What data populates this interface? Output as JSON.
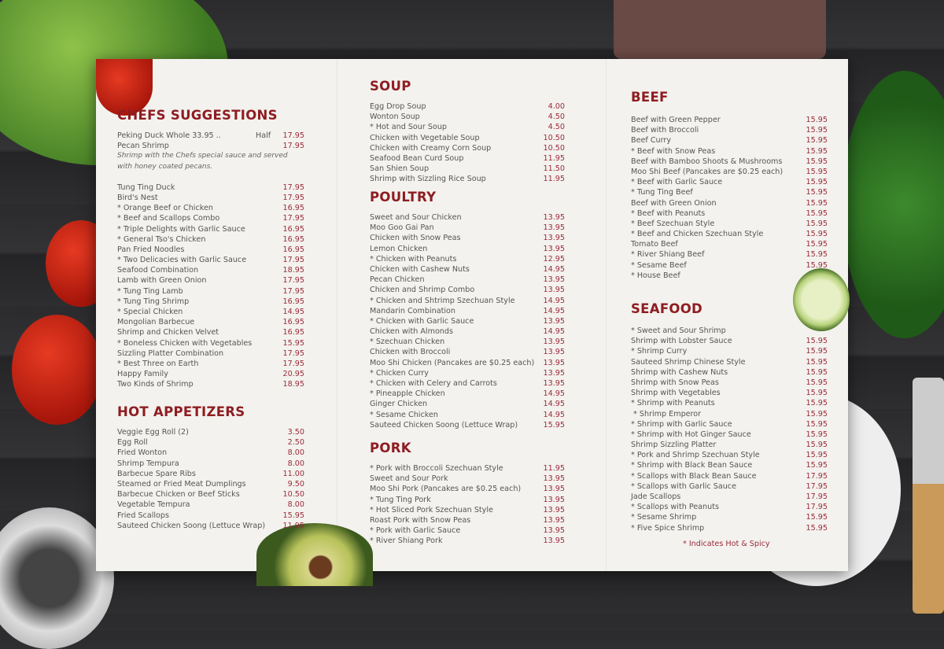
{
  "menu": {
    "chefs": {
      "title": "CHEFS SUGGESTIONS",
      "peking": {
        "name": "Peking Duck   Whole 33.95 ..",
        "half": "Half",
        "price": "17.95"
      },
      "pecan": {
        "name": "Pecan Shrimp",
        "price": "17.95"
      },
      "pecan_desc": "Shrimp with the Chefs special sauce and served with honey coated pecans.",
      "items": [
        {
          "name": "Tung Ting Duck",
          "price": "17.95"
        },
        {
          "name": "Bird's Nest",
          "price": "17.95"
        },
        {
          "name": "* Orange Beef or Chicken",
          "price": "16.95"
        },
        {
          "name": "* Beef and Scallops Combo",
          "price": "17.95"
        },
        {
          "name": "* Triple Delights with Garlic Sauce",
          "price": "16.95"
        },
        {
          "name": "* General Tso's Chicken",
          "price": "16.95"
        },
        {
          "name": "Pan Fried Noodles",
          "price": "16.95"
        },
        {
          "name": "* Two Delicacies with Garlic Sauce",
          "price": "17.95"
        },
        {
          "name": "Seafood Combination",
          "price": "18.95"
        },
        {
          "name": "Lamb with Green Onion",
          "price": "17.95"
        },
        {
          "name": "* Tung Ting Lamb",
          "price": "17.95"
        },
        {
          "name": "* Tung Ting Shrimp",
          "price": "16.95"
        },
        {
          "name": "* Special Chicken",
          "price": "14.95"
        },
        {
          "name": "Mongolian Barbecue",
          "price": "16.95"
        },
        {
          "name": "Shrimp and Chicken Velvet",
          "price": "16.95"
        },
        {
          "name": "* Boneless Chicken with Vegetables",
          "price": "15.95"
        },
        {
          "name": "Sizzling Platter Combination",
          "price": "17.95"
        },
        {
          "name": "* Best Three on Earth",
          "price": "17.95"
        },
        {
          "name": "Happy Family",
          "price": "20.95"
        },
        {
          "name": "Two Kinds of Shrimp",
          "price": "18.95"
        }
      ]
    },
    "hot_appetizers": {
      "title": "HOT APPETIZERS",
      "items": [
        {
          "name": "Veggie Egg Roll (2)",
          "price": "3.50"
        },
        {
          "name": "Egg Roll",
          "price": "2.50"
        },
        {
          "name": "Fried Wonton",
          "price": "8.00"
        },
        {
          "name": "Shrimp Tempura",
          "price": "8.00"
        },
        {
          "name": "Barbecue Spare Ribs",
          "price": "11.00"
        },
        {
          "name": "Steamed or Fried Meat Dumplings",
          "price": "9.50"
        },
        {
          "name": "Barbecue Chicken or Beef Sticks",
          "price": "10.50"
        },
        {
          "name": "Vegetable Tempura",
          "price": "8.00"
        },
        {
          "name": "Fried Scallops",
          "price": "15.95"
        },
        {
          "name": "Sauteed Chicken Soong (Lettuce Wrap)",
          "price": "11.95"
        }
      ]
    },
    "soup": {
      "title": "SOUP",
      "items": [
        {
          "name": "Egg Drop Soup",
          "price": "4.00"
        },
        {
          "name": "Wonton Soup",
          "price": "4.50"
        },
        {
          "name": "* Hot and Sour Soup",
          "price": "4.50"
        },
        {
          "name": "Chicken with Vegetable Soup",
          "price": "10.50"
        },
        {
          "name": "Chicken with Creamy Corn Soup",
          "price": "10.50"
        },
        {
          "name": "Seafood Bean Curd Soup",
          "price": "11.95"
        },
        {
          "name": "San Shien Soup",
          "price": "11.50"
        },
        {
          "name": "Shrimp with Sizzling Rice Soup",
          "price": "11.95"
        }
      ]
    },
    "poultry": {
      "title": "POULTRY",
      "items": [
        {
          "name": "Sweet and Sour Chicken",
          "price": "13.95"
        },
        {
          "name": "Moo Goo Gai Pan",
          "price": "13.95"
        },
        {
          "name": "Chicken with Snow Peas",
          "price": "13.95"
        },
        {
          "name": "Lemon Chicken",
          "price": "13.95"
        },
        {
          "name": "* Chicken with Peanuts",
          "price": "12.95"
        },
        {
          "name": "Chicken with Cashew Nuts",
          "price": "14.95"
        },
        {
          "name": "Pecan Chicken",
          "price": "13.95"
        },
        {
          "name": "Chicken and Shrimp Combo",
          "price": "13.95"
        },
        {
          "name": "* Chicken and Shtrimp Szechuan Style",
          "price": "14.95"
        },
        {
          "name": "Mandarin Combination",
          "price": "14.95"
        },
        {
          "name": "* Chicken with Garlic Sauce",
          "price": "13.95"
        },
        {
          "name": "Chicken with Almonds",
          "price": "14.95"
        },
        {
          "name": "* Szechuan Chicken",
          "price": "13.95"
        },
        {
          "name": "Chicken with Broccoli",
          "price": "13.95"
        },
        {
          "name": "Moo Shi Chicken (Pancakes are $0.25 each)",
          "price": "13.95"
        },
        {
          "name": "* Chicken Curry",
          "price": "13.95"
        },
        {
          "name": "* Chicken with Celery and Carrots",
          "price": "13.95"
        },
        {
          "name": "* Pineapple Chicken",
          "price": "14.95"
        },
        {
          "name": "Ginger Chicken",
          "price": "14.95"
        },
        {
          "name": "* Sesame Chicken",
          "price": "14.95"
        },
        {
          "name": "Sauteed Chicken Soong (Lettuce Wrap)",
          "price": "15.95"
        }
      ]
    },
    "pork": {
      "title": "PORK",
      "items": [
        {
          "name": "* Pork with Broccoli Szechuan Style",
          "price": "11.95"
        },
        {
          "name": "Sweet and Sour Pork",
          "price": "13.95"
        },
        {
          "name": "Moo Shi Pork (Pancakes are $0.25 each)",
          "price": "13.95"
        },
        {
          "name": "* Tung Ting Pork",
          "price": "13.95"
        },
        {
          "name": "* Hot Sliced Pork Szechuan Style",
          "price": "13.95"
        },
        {
          "name": "Roast Pork with Snow Peas",
          "price": "13.95"
        },
        {
          "name": "* Pork with Garlic Sauce",
          "price": "13.95"
        },
        {
          "name": "* River Shiang Pork",
          "price": "13.95"
        }
      ]
    },
    "beef": {
      "title": "BEEF",
      "items": [
        {
          "name": "Beef with Green Pepper",
          "price": "15.95"
        },
        {
          "name": "Beef with Broccoli",
          "price": "15.95"
        },
        {
          "name": "Beef Curry",
          "price": "15.95"
        },
        {
          "name": "* Beef with Snow Peas",
          "price": "15.95"
        },
        {
          "name": "Beef with Bamboo Shoots & Mushrooms",
          "price": "15.95"
        },
        {
          "name": "Moo Shi Beef (Pancakes are $0.25 each)",
          "price": "15.95"
        },
        {
          "name": "* Beef with Garlic Sauce",
          "price": "15.95"
        },
        {
          "name": "* Tung Ting Beef",
          "price": "15.95"
        },
        {
          "name": "Beef with Green Onion",
          "price": "15.95"
        },
        {
          "name": "* Beef with Peanuts",
          "price": "15.95"
        },
        {
          "name": "* Beef Szechuan Style",
          "price": "15.95"
        },
        {
          "name": "* Beef and Chicken Szechuan Style",
          "price": "15.95"
        },
        {
          "name": "Tomato Beef",
          "price": "15.95"
        },
        {
          "name": "* River Shiang Beef",
          "price": "15.95"
        },
        {
          "name": "* Sesame Beef",
          "price": "15.95"
        },
        {
          "name": "* House Beef",
          "price": ""
        }
      ]
    },
    "seafood": {
      "title": "SEAFOOD",
      "items": [
        {
          "name": "* Sweet and Sour Shrimp",
          "price": ""
        },
        {
          "name": "Shrimp with Lobster Sauce",
          "price": "15.95"
        },
        {
          "name": "* Shrimp Curry",
          "price": "15.95"
        },
        {
          "name": "Sauteed Shrimp Chinese Style",
          "price": "15.95"
        },
        {
          "name": "Shrimp with Cashew Nuts",
          "price": "15.95"
        },
        {
          "name": "Shrimp with Snow Peas",
          "price": "15.95"
        },
        {
          "name": "Shrimp with Vegetables",
          "price": "15.95"
        },
        {
          "name": "* Shrimp with Peanuts",
          "price": "15.95"
        },
        {
          "name": " * Shrimp Emperor",
          "price": "15.95"
        },
        {
          "name": "* Shrimp with Garlic Sauce",
          "price": "15.95"
        },
        {
          "name": "* Shrimp with Hot Ginger Sauce",
          "price": "15.95"
        },
        {
          "name": "Shrimp Sizzling Platter",
          "price": "15.95"
        },
        {
          "name": "* Pork and Shrimp Szechuan Style",
          "price": "15.95"
        },
        {
          "name": "* Shrimp with Black Bean Sauce",
          "price": "15.95"
        },
        {
          "name": "* Scallops with Black Bean Sauce",
          "price": "17.95"
        },
        {
          "name": "* Scallops with Garlic Sauce",
          "price": "17.95"
        },
        {
          "name": "Jade Scallops",
          "price": "17.95"
        },
        {
          "name": "* Scallops with Peanuts",
          "price": "17.95"
        },
        {
          "name": "* Sesame Shrimp",
          "price": "15.95"
        },
        {
          "name": "* Five Spice Shrimp",
          "price": "15.95"
        }
      ]
    },
    "note": "* Indicates Hot & Spicy"
  },
  "colors": {
    "heading": "#8e1d22",
    "price": "#9a2a3a",
    "paper": "#f3f2ee",
    "table": "#2b2b2d"
  }
}
